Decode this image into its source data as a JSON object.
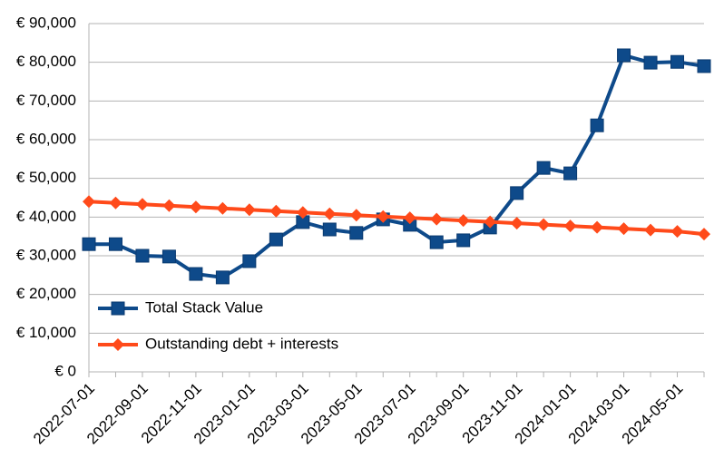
{
  "chart_data": {
    "type": "line",
    "categories": [
      "2022-07-01",
      null,
      "2022-09-01",
      null,
      "2022-11-01",
      null,
      "2023-01-01",
      null,
      "2023-03-01",
      null,
      "2023-05-01",
      null,
      "2023-07-01",
      null,
      "2023-09-01",
      null,
      "2023-11-01",
      null,
      "2024-01-01",
      null,
      "2024-03-01",
      null,
      "2024-05-01",
      null
    ],
    "series": [
      {
        "name": "Total Stack Value",
        "color": "#0e4a8a",
        "marker": "square",
        "values": [
          33000,
          33000,
          30000,
          29800,
          25300,
          24400,
          28600,
          34200,
          38700,
          36800,
          35900,
          39400,
          38000,
          33500,
          34000,
          37300,
          46200,
          52700,
          51300,
          63700,
          81800,
          79900,
          80100,
          79000
        ]
      },
      {
        "name": "Outstanding debt + interests",
        "color": "#ff4a1a",
        "marker": "diamond",
        "values": [
          44000,
          43650,
          43300,
          42950,
          42600,
          42250,
          41900,
          41550,
          41200,
          40850,
          40500,
          40150,
          39800,
          39450,
          39100,
          38750,
          38400,
          38050,
          37700,
          37350,
          37000,
          36650,
          36300,
          35600
        ]
      }
    ],
    "ylim": [
      0,
      90000
    ],
    "yticks": [
      {
        "value": 0,
        "label": "€ 0"
      },
      {
        "value": 10000,
        "label": "€ 10,000"
      },
      {
        "value": 20000,
        "label": "€ 20,000"
      },
      {
        "value": 30000,
        "label": "€ 30,000"
      },
      {
        "value": 40000,
        "label": "€ 40,000"
      },
      {
        "value": 50000,
        "label": "€ 50,000"
      },
      {
        "value": 60000,
        "label": "€ 60,000"
      },
      {
        "value": 70000,
        "label": "€ 70,000"
      },
      {
        "value": 80000,
        "label": "€ 80,000"
      },
      {
        "value": 90000,
        "label": "€ 90,000"
      }
    ],
    "grid": true,
    "legend": "lower left"
  }
}
